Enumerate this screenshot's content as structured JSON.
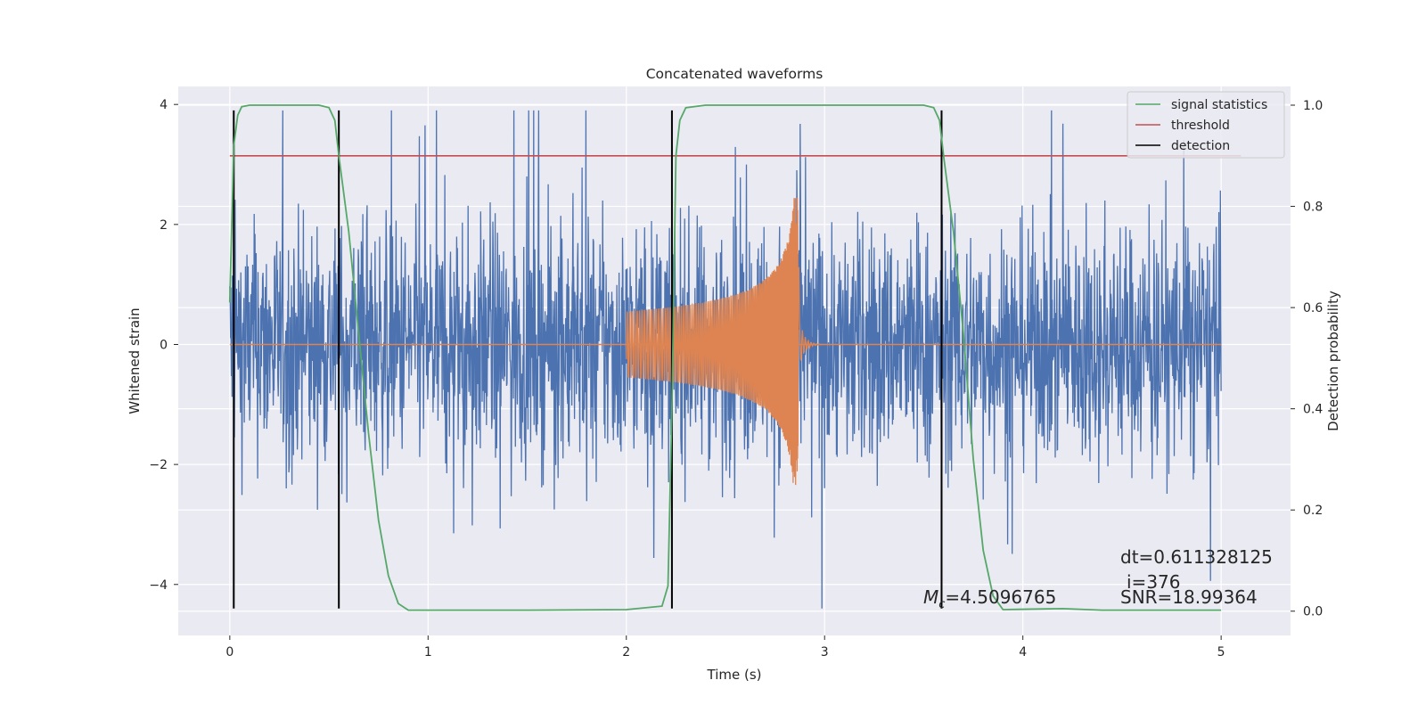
{
  "chart_data": {
    "type": "line",
    "title": "Concatenated waveforms",
    "xlabel": "Time (s)",
    "ylabel": "Whitened strain",
    "ylabel_right": "Detection probability",
    "xlim": [
      -0.26,
      5.35
    ],
    "ylim": [
      -4.85,
      4.3
    ],
    "ylim_right": [
      -0.048,
      1.037
    ],
    "xticks": [
      0,
      1,
      2,
      3,
      4,
      5
    ],
    "yticks": [
      -4,
      -2,
      0,
      2,
      4
    ],
    "yticks_right": [
      0.0,
      0.2,
      0.4,
      0.6,
      0.8,
      1.0
    ],
    "grid": true,
    "legend_position": "top-right",
    "colors": {
      "background": "#eaeaf2",
      "noise": "#4c72b0",
      "template": "#dd8452",
      "signal_statistics": "#55a868",
      "threshold": "#c44e52",
      "detection": "#000000"
    },
    "series": [
      {
        "name": "",
        "role": "whitened-strain",
        "axis": "left",
        "x_range": [
          0.0,
          5.0
        ],
        "amplitude_range": [
          -4.4,
          3.9
        ]
      },
      {
        "name": "",
        "role": "template-chirp",
        "axis": "left",
        "x_range": [
          2.0,
          2.87
        ],
        "peak_amplitude": 2.45
      },
      {
        "name": "signal statistics",
        "axis": "right",
        "x": [
          0.0,
          0.02,
          0.04,
          0.06,
          0.1,
          0.2,
          0.45,
          0.5,
          0.53,
          0.55,
          0.6,
          0.65,
          0.7,
          0.75,
          0.8,
          0.85,
          0.9,
          1.5,
          2.0,
          2.18,
          2.21,
          2.23,
          2.25,
          2.27,
          2.3,
          2.4,
          3.5,
          3.55,
          3.58,
          3.6,
          3.65,
          3.7,
          3.75,
          3.8,
          3.85,
          3.9,
          4.2,
          4.4,
          5.0
        ],
        "y": [
          0.61,
          0.92,
          0.98,
          0.997,
          1.0,
          1.0,
          1.0,
          0.995,
          0.97,
          0.9,
          0.75,
          0.55,
          0.35,
          0.18,
          0.07,
          0.015,
          0.002,
          0.002,
          0.003,
          0.01,
          0.05,
          0.4,
          0.9,
          0.97,
          0.995,
          1.0,
          1.0,
          0.995,
          0.97,
          0.9,
          0.75,
          0.55,
          0.3,
          0.12,
          0.03,
          0.003,
          0.005,
          0.002,
          0.002
        ]
      },
      {
        "name": "threshold",
        "axis": "right",
        "x": [
          0.0,
          5.1
        ],
        "y": [
          0.9,
          0.9
        ]
      },
      {
        "name": "detection",
        "axis": "left",
        "x_positions": [
          0.02,
          0.55,
          2.23,
          3.59
        ],
        "y_range": [
          -4.4,
          3.9
        ]
      }
    ],
    "annotations": {
      "mc_symbol": "M",
      "mc_subscript": "c",
      "mc_value": "=4.5096765",
      "dt": "dt=0.611328125",
      "i": "i=376",
      "snr": "SNR=18.99364"
    }
  }
}
